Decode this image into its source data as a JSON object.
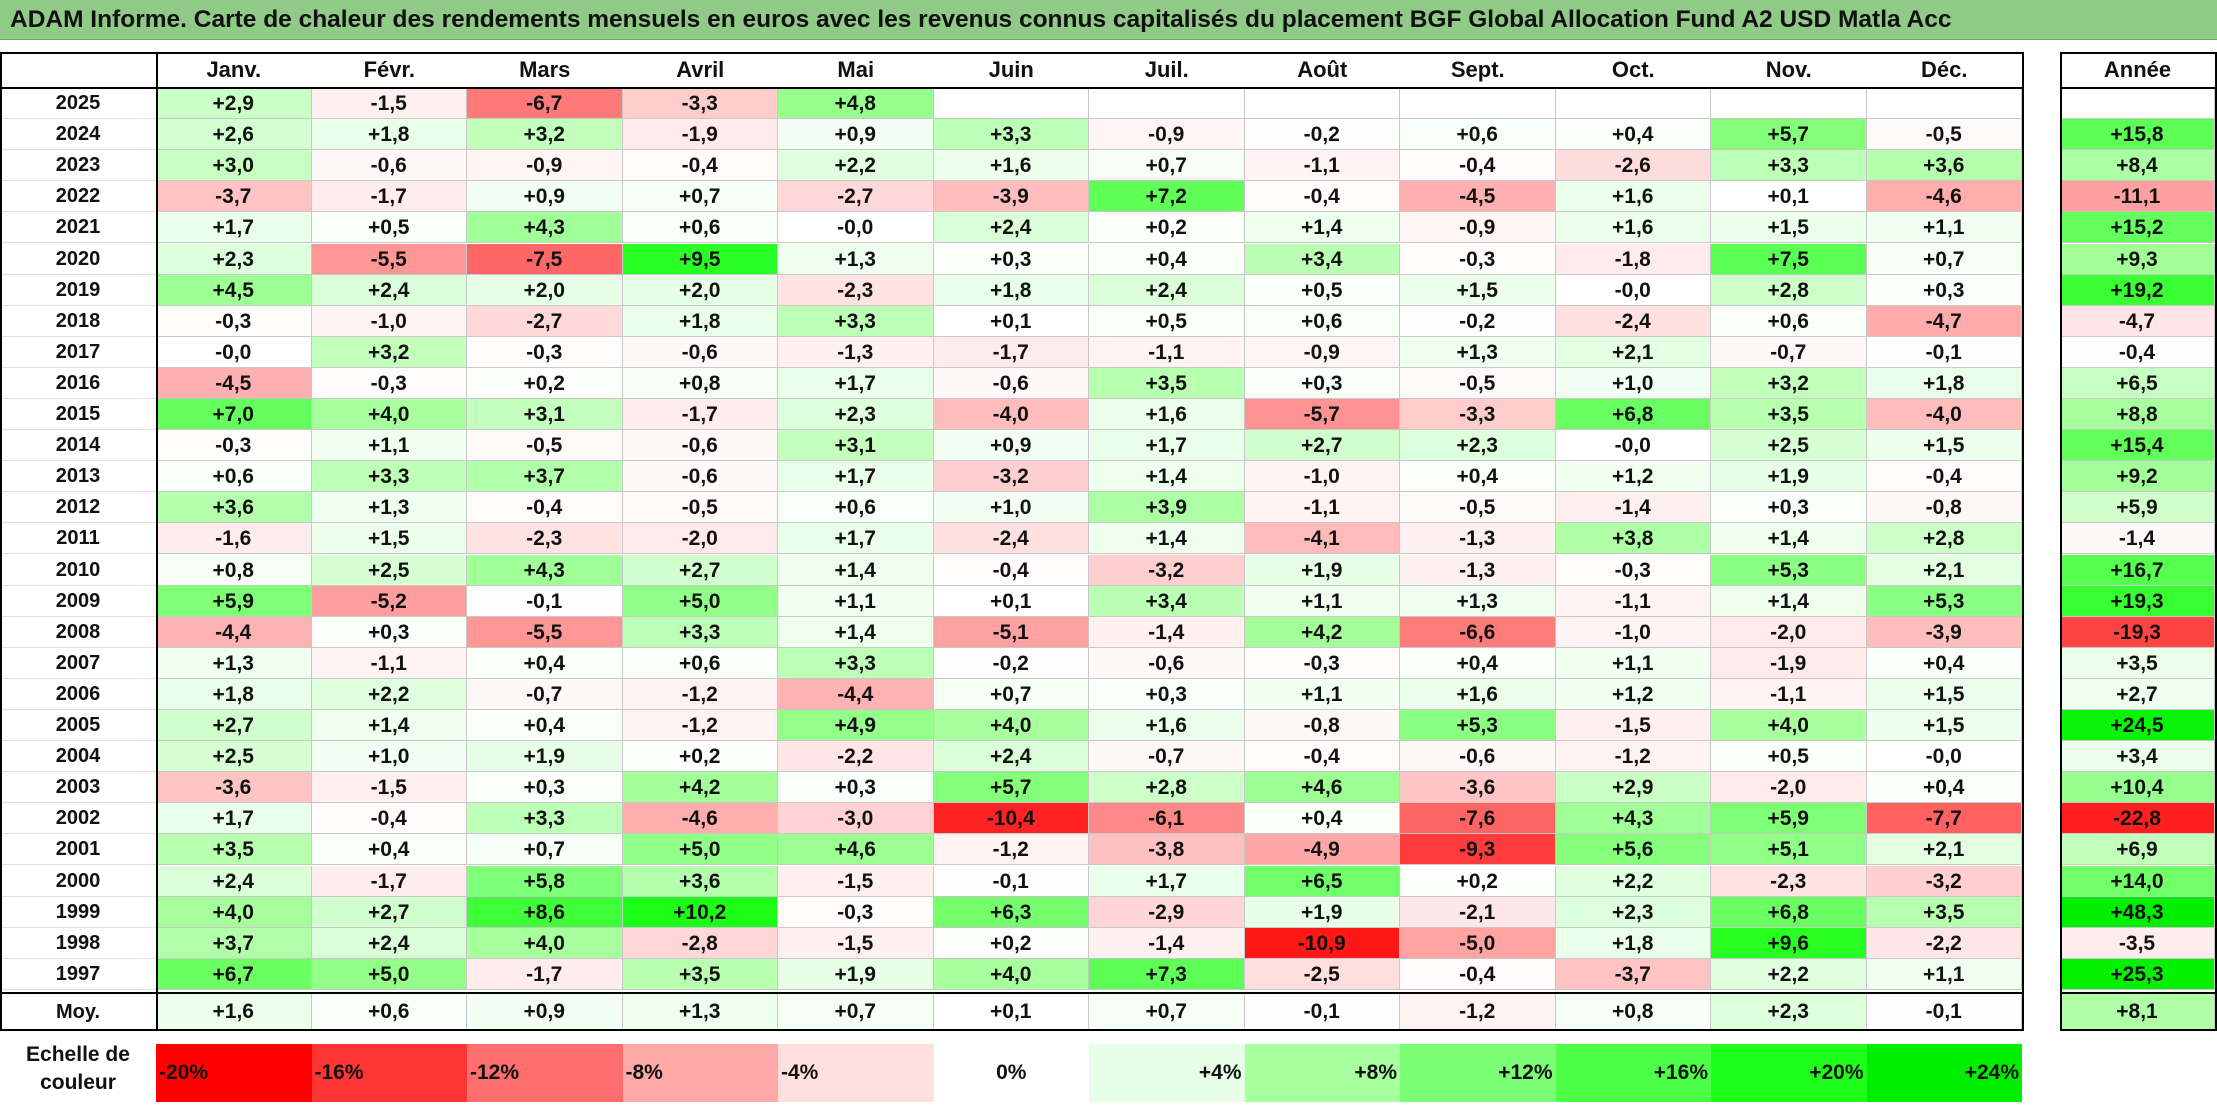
{
  "title": "ADAM Informe. Carte de chaleur des rendements mensuels en euros avec les revenus connus capitalisés du placement BGF Global Allocation Fund A2 USD Matla Acc",
  "chart_data": {
    "type": "heatmap",
    "months": [
      "Janv.",
      "Févr.",
      "Mars",
      "Avril",
      "Mai",
      "Juin",
      "Juil.",
      "Août",
      "Sept.",
      "Oct.",
      "Nov.",
      "Déc."
    ],
    "year_column_label": "Année",
    "average_label": "Moy.",
    "rows": [
      {
        "year": "2025",
        "values": [
          "+2,9",
          "-1,5",
          "-6,7",
          "-3,3",
          "+4,8",
          "",
          "",
          "",
          "",
          "",
          "",
          ""
        ],
        "annual": ""
      },
      {
        "year": "2024",
        "values": [
          "+2,6",
          "+1,8",
          "+3,2",
          "-1,9",
          "+0,9",
          "+3,3",
          "-0,9",
          "-0,2",
          "+0,6",
          "+0,4",
          "+5,7",
          "-0,5"
        ],
        "annual": "+15,8"
      },
      {
        "year": "2023",
        "values": [
          "+3,0",
          "-0,6",
          "-0,9",
          "-0,4",
          "+2,2",
          "+1,6",
          "+0,7",
          "-1,1",
          "-0,4",
          "-2,6",
          "+3,3",
          "+3,6"
        ],
        "annual": "+8,4"
      },
      {
        "year": "2022",
        "values": [
          "-3,7",
          "-1,7",
          "+0,9",
          "+0,7",
          "-2,7",
          "-3,9",
          "+7,2",
          "-0,4",
          "-4,5",
          "+1,6",
          "+0,1",
          "-4,6"
        ],
        "annual": "-11,1"
      },
      {
        "year": "2021",
        "values": [
          "+1,7",
          "+0,5",
          "+4,3",
          "+0,6",
          "-0,0",
          "+2,4",
          "+0,2",
          "+1,4",
          "-0,9",
          "+1,6",
          "+1,5",
          "+1,1"
        ],
        "annual": "+15,2"
      },
      {
        "year": "2020",
        "values": [
          "+2,3",
          "-5,5",
          "-7,5",
          "+9,5",
          "+1,3",
          "+0,3",
          "+0,4",
          "+3,4",
          "-0,3",
          "-1,8",
          "+7,5",
          "+0,7"
        ],
        "annual": "+9,3"
      },
      {
        "year": "2019",
        "values": [
          "+4,5",
          "+2,4",
          "+2,0",
          "+2,0",
          "-2,3",
          "+1,8",
          "+2,4",
          "+0,5",
          "+1,5",
          "-0,0",
          "+2,8",
          "+0,3"
        ],
        "annual": "+19,2"
      },
      {
        "year": "2018",
        "values": [
          "-0,3",
          "-1,0",
          "-2,7",
          "+1,8",
          "+3,3",
          "+0,1",
          "+0,5",
          "+0,6",
          "-0,2",
          "-2,4",
          "+0,6",
          "-4,7"
        ],
        "annual": "-4,7"
      },
      {
        "year": "2017",
        "values": [
          "-0,0",
          "+3,2",
          "-0,3",
          "-0,6",
          "-1,3",
          "-1,7",
          "-1,1",
          "-0,9",
          "+1,3",
          "+2,1",
          "-0,7",
          "-0,1"
        ],
        "annual": "-0,4"
      },
      {
        "year": "2016",
        "values": [
          "-4,5",
          "-0,3",
          "+0,2",
          "+0,8",
          "+1,7",
          "-0,6",
          "+3,5",
          "+0,3",
          "-0,5",
          "+1,0",
          "+3,2",
          "+1,8"
        ],
        "annual": "+6,5"
      },
      {
        "year": "2015",
        "values": [
          "+7,0",
          "+4,0",
          "+3,1",
          "-1,7",
          "+2,3",
          "-4,0",
          "+1,6",
          "-5,7",
          "-3,3",
          "+6,8",
          "+3,5",
          "-4,0"
        ],
        "annual": "+8,8"
      },
      {
        "year": "2014",
        "values": [
          "-0,3",
          "+1,1",
          "-0,5",
          "-0,6",
          "+3,1",
          "+0,9",
          "+1,7",
          "+2,7",
          "+2,3",
          "-0,0",
          "+2,5",
          "+1,5"
        ],
        "annual": "+15,4"
      },
      {
        "year": "2013",
        "values": [
          "+0,6",
          "+3,3",
          "+3,7",
          "-0,6",
          "+1,7",
          "-3,2",
          "+1,4",
          "-1,0",
          "+0,4",
          "+1,2",
          "+1,9",
          "-0,4"
        ],
        "annual": "+9,2"
      },
      {
        "year": "2012",
        "values": [
          "+3,6",
          "+1,3",
          "-0,4",
          "-0,5",
          "+0,6",
          "+1,0",
          "+3,9",
          "-1,1",
          "-0,5",
          "-1,4",
          "+0,3",
          "-0,8"
        ],
        "annual": "+5,9"
      },
      {
        "year": "2011",
        "values": [
          "-1,6",
          "+1,5",
          "-2,3",
          "-2,0",
          "+1,7",
          "-2,4",
          "+1,4",
          "-4,1",
          "-1,3",
          "+3,8",
          "+1,4",
          "+2,8"
        ],
        "annual": "-1,4"
      },
      {
        "year": "2010",
        "values": [
          "+0,8",
          "+2,5",
          "+4,3",
          "+2,7",
          "+1,4",
          "-0,4",
          "-3,2",
          "+1,9",
          "-1,3",
          "-0,3",
          "+5,3",
          "+2,1"
        ],
        "annual": "+16,7"
      },
      {
        "year": "2009",
        "values": [
          "+5,9",
          "-5,2",
          "-0,1",
          "+5,0",
          "+1,1",
          "+0,1",
          "+3,4",
          "+1,1",
          "+1,3",
          "-1,1",
          "+1,4",
          "+5,3"
        ],
        "annual": "+19,3"
      },
      {
        "year": "2008",
        "values": [
          "-4,4",
          "+0,3",
          "-5,5",
          "+3,3",
          "+1,4",
          "-5,1",
          "-1,4",
          "+4,2",
          "-6,6",
          "-1,0",
          "-2,0",
          "-3,9"
        ],
        "annual": "-19,3"
      },
      {
        "year": "2007",
        "values": [
          "+1,3",
          "-1,1",
          "+0,4",
          "+0,6",
          "+3,3",
          "-0,2",
          "-0,6",
          "-0,3",
          "+0,4",
          "+1,1",
          "-1,9",
          "+0,4"
        ],
        "annual": "+3,5"
      },
      {
        "year": "2006",
        "values": [
          "+1,8",
          "+2,2",
          "-0,7",
          "-1,2",
          "-4,4",
          "+0,7",
          "+0,3",
          "+1,1",
          "+1,6",
          "+1,2",
          "-1,1",
          "+1,5"
        ],
        "annual": "+2,7"
      },
      {
        "year": "2005",
        "values": [
          "+2,7",
          "+1,4",
          "+0,4",
          "-1,2",
          "+4,9",
          "+4,0",
          "+1,6",
          "-0,8",
          "+5,3",
          "-1,5",
          "+4,0",
          "+1,5"
        ],
        "annual": "+24,5"
      },
      {
        "year": "2004",
        "values": [
          "+2,5",
          "+1,0",
          "+1,9",
          "+0,2",
          "-2,2",
          "+2,4",
          "-0,7",
          "-0,4",
          "-0,6",
          "-1,2",
          "+0,5",
          "-0,0"
        ],
        "annual": "+3,4"
      },
      {
        "year": "2003",
        "values": [
          "-3,6",
          "-1,5",
          "+0,3",
          "+4,2",
          "+0,3",
          "+5,7",
          "+2,8",
          "+4,6",
          "-3,6",
          "+2,9",
          "-2,0",
          "+0,4"
        ],
        "annual": "+10,4"
      },
      {
        "year": "2002",
        "values": [
          "+1,7",
          "-0,4",
          "+3,3",
          "-4,6",
          "-3,0",
          "-10,4",
          "-6,1",
          "+0,4",
          "-7,6",
          "+4,3",
          "+5,9",
          "-7,7"
        ],
        "annual": "-22,8"
      },
      {
        "year": "2001",
        "values": [
          "+3,5",
          "+0,4",
          "+0,7",
          "+5,0",
          "+4,6",
          "-1,2",
          "-3,8",
          "-4,9",
          "-9,3",
          "+5,6",
          "+5,1",
          "+2,1"
        ],
        "annual": "+6,9"
      },
      {
        "year": "2000",
        "values": [
          "+2,4",
          "-1,7",
          "+5,8",
          "+3,6",
          "-1,5",
          "-0,1",
          "+1,7",
          "+6,5",
          "+0,2",
          "+2,2",
          "-2,3",
          "-3,2"
        ],
        "annual": "+14,0"
      },
      {
        "year": "1999",
        "values": [
          "+4,0",
          "+2,7",
          "+8,6",
          "+10,2",
          "-0,3",
          "+6,3",
          "-2,9",
          "+1,9",
          "-2,1",
          "+2,3",
          "+6,8",
          "+3,5"
        ],
        "annual": "+48,3"
      },
      {
        "year": "1998",
        "values": [
          "+3,7",
          "+2,4",
          "+4,0",
          "-2,8",
          "-1,5",
          "+0,2",
          "-1,4",
          "-10,9",
          "-5,0",
          "+1,8",
          "+9,6",
          "-2,2"
        ],
        "annual": "-3,5"
      },
      {
        "year": "1997",
        "values": [
          "+6,7",
          "+5,0",
          "-1,7",
          "+3,5",
          "+1,9",
          "+4,0",
          "+7,3",
          "-2,5",
          "-0,4",
          "-3,7",
          "+2,2",
          "+1,1"
        ],
        "annual": "+25,3"
      }
    ],
    "averages": {
      "values": [
        "+1,6",
        "+0,6",
        "+0,9",
        "+1,3",
        "+0,7",
        "+0,1",
        "+0,7",
        "-0,1",
        "-1,2",
        "+0,8",
        "+2,3",
        "-0,1"
      ],
      "annual": "+8,1"
    },
    "legend": {
      "label_line1": "Echelle de",
      "label_line2": "couleur",
      "stops": [
        {
          "label": "-20%",
          "value": -20
        },
        {
          "label": "-16%",
          "value": -16
        },
        {
          "label": "-12%",
          "value": -12
        },
        {
          "label": "-8%",
          "value": -8
        },
        {
          "label": "-4%",
          "value": -4
        },
        {
          "label": "0%",
          "value": 0
        },
        {
          "label": "+4%",
          "value": 4
        },
        {
          "label": "+8%",
          "value": 8
        },
        {
          "label": "+12%",
          "value": 12
        },
        {
          "label": "+16%",
          "value": 16
        },
        {
          "label": "+20%",
          "value": 20
        },
        {
          "label": "+24%",
          "value": 24
        }
      ]
    },
    "colors": {
      "negative_max": "#ff0000",
      "neutral": "#ffffff",
      "positive_max": "#00ee00",
      "title_bar": "#8fca86"
    }
  }
}
